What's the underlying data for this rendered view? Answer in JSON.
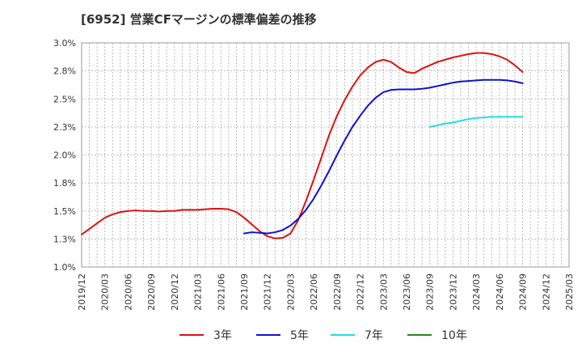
{
  "title": "[6952]  営業CFマージンの標準偏差の推移",
  "chart_data": {
    "type": "line",
    "title": "[6952]  営業CFマージンの標準偏差の推移",
    "xlabel": "",
    "ylabel": "",
    "ylim": [
      1.0,
      3.0
    ],
    "y_ticks": [
      "1.0%",
      "1.3%",
      "1.5%",
      "1.8%",
      "2.0%",
      "2.3%",
      "2.5%",
      "2.8%",
      "3.0%"
    ],
    "x_ticks": [
      "2019/12",
      "2020/03",
      "2020/06",
      "2020/09",
      "2020/12",
      "2021/03",
      "2021/06",
      "2021/09",
      "2021/12",
      "2022/03",
      "2022/06",
      "2022/09",
      "2022/12",
      "2023/03",
      "2023/06",
      "2023/09",
      "2023/12",
      "2024/03",
      "2024/06",
      "2024/09",
      "2024/12",
      "2025/03"
    ],
    "grid": true,
    "legend_position": "bottom",
    "series": [
      {
        "name": "3年",
        "color": "#dd1111",
        "x": [
          "2019/12",
          "2020/01",
          "2020/02",
          "2020/03",
          "2020/04",
          "2020/05",
          "2020/06",
          "2020/07",
          "2020/08",
          "2020/09",
          "2020/10",
          "2020/11",
          "2020/12",
          "2021/01",
          "2021/02",
          "2021/03",
          "2021/04",
          "2021/05",
          "2021/06",
          "2021/07",
          "2021/08",
          "2021/09",
          "2021/10",
          "2021/11",
          "2021/12",
          "2022/01",
          "2022/02",
          "2022/03",
          "2022/04",
          "2022/05",
          "2022/06",
          "2022/07",
          "2022/08",
          "2022/09",
          "2022/10",
          "2022/11",
          "2022/12",
          "2023/01",
          "2023/02",
          "2023/03",
          "2023/04",
          "2023/05",
          "2023/06",
          "2023/07",
          "2023/08",
          "2023/09",
          "2023/10",
          "2023/11",
          "2023/12",
          "2024/01",
          "2024/02",
          "2024/03",
          "2024/04",
          "2024/05",
          "2024/06",
          "2024/07",
          "2024/08",
          "2024/09"
        ],
        "values": [
          1.29,
          1.34,
          1.39,
          1.44,
          1.47,
          1.49,
          1.5,
          1.505,
          1.5,
          1.5,
          1.495,
          1.5,
          1.5,
          1.51,
          1.51,
          1.51,
          1.515,
          1.52,
          1.52,
          1.515,
          1.49,
          1.44,
          1.38,
          1.32,
          1.275,
          1.255,
          1.26,
          1.3,
          1.42,
          1.59,
          1.78,
          1.98,
          2.18,
          2.35,
          2.49,
          2.61,
          2.71,
          2.78,
          2.83,
          2.85,
          2.83,
          2.78,
          2.74,
          2.73,
          2.77,
          2.8,
          2.83,
          2.85,
          2.87,
          2.885,
          2.9,
          2.91,
          2.91,
          2.9,
          2.88,
          2.85,
          2.8,
          2.74
        ]
      },
      {
        "name": "5年",
        "color": "#1111cc",
        "x": [
          "2021/09",
          "2021/10",
          "2021/11",
          "2021/12",
          "2022/01",
          "2022/02",
          "2022/03",
          "2022/04",
          "2022/05",
          "2022/06",
          "2022/07",
          "2022/08",
          "2022/09",
          "2022/10",
          "2022/11",
          "2022/12",
          "2023/01",
          "2023/02",
          "2023/03",
          "2023/04",
          "2023/05",
          "2023/06",
          "2023/07",
          "2023/08",
          "2023/09",
          "2023/10",
          "2023/11",
          "2023/12",
          "2024/01",
          "2024/02",
          "2024/03",
          "2024/04",
          "2024/05",
          "2024/06",
          "2024/07",
          "2024/08",
          "2024/09"
        ],
        "values": [
          1.3,
          1.31,
          1.305,
          1.3,
          1.31,
          1.33,
          1.37,
          1.43,
          1.51,
          1.61,
          1.73,
          1.86,
          2.0,
          2.13,
          2.25,
          2.35,
          2.44,
          2.51,
          2.56,
          2.58,
          2.585,
          2.585,
          2.585,
          2.59,
          2.6,
          2.615,
          2.63,
          2.645,
          2.655,
          2.66,
          2.665,
          2.67,
          2.67,
          2.67,
          2.665,
          2.655,
          2.64
        ]
      },
      {
        "name": "7年",
        "color": "#22dddd",
        "x": [
          "2023/09",
          "2023/10",
          "2023/11",
          "2023/12",
          "2024/01",
          "2024/02",
          "2024/03",
          "2024/04",
          "2024/05",
          "2024/06",
          "2024/07",
          "2024/08",
          "2024/09"
        ],
        "values": [
          2.25,
          2.265,
          2.28,
          2.29,
          2.305,
          2.32,
          2.33,
          2.335,
          2.34,
          2.34,
          2.34,
          2.34,
          2.34
        ]
      },
      {
        "name": "10年",
        "color": "#228822",
        "x": [],
        "values": []
      }
    ]
  }
}
